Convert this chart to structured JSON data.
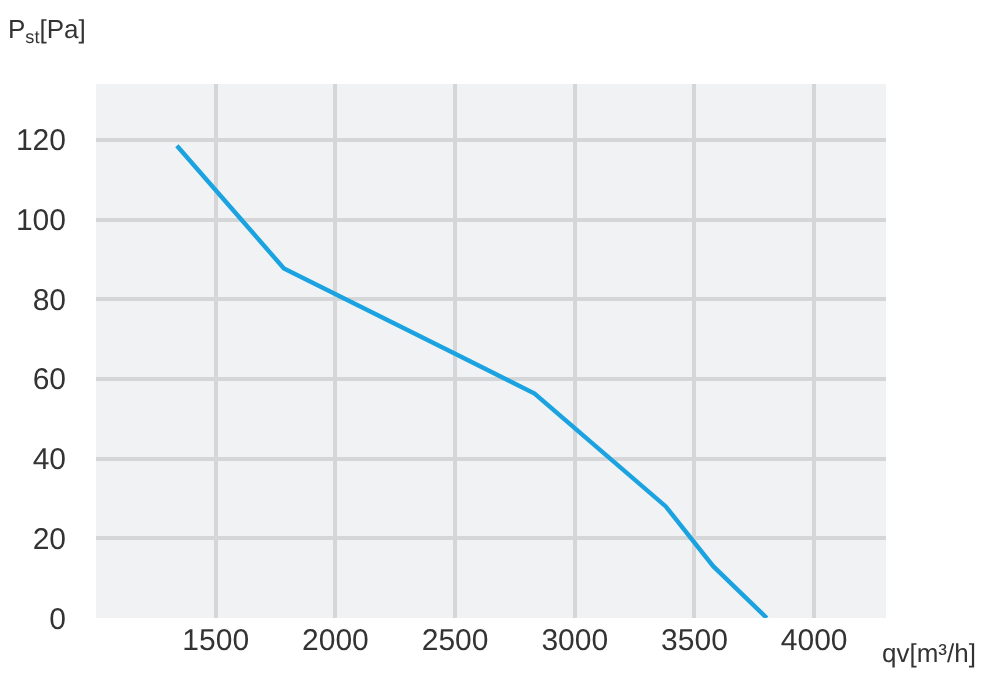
{
  "chart_data": {
    "type": "line",
    "xlabel": "qv[m³/h]",
    "ylabel": "P$_{st}$[Pa]",
    "x": [
      1338,
      1785,
      2500,
      2832,
      3380,
      3578,
      3802
    ],
    "series": [
      {
        "color": "#1aa3e0",
        "values": [
          118.5,
          87.7,
          66.3,
          56.3,
          28,
          13,
          0
        ]
      }
    ],
    "xlim": [
      1000,
      4300
    ],
    "xticks": [
      1500,
      2000,
      2500,
      3000,
      3500,
      4000
    ],
    "ylim": [
      0,
      134
    ],
    "yticks": [
      0,
      20,
      40,
      60,
      80,
      100,
      120
    ],
    "grid": true,
    "marker": "none",
    "line_style": "solid"
  }
}
